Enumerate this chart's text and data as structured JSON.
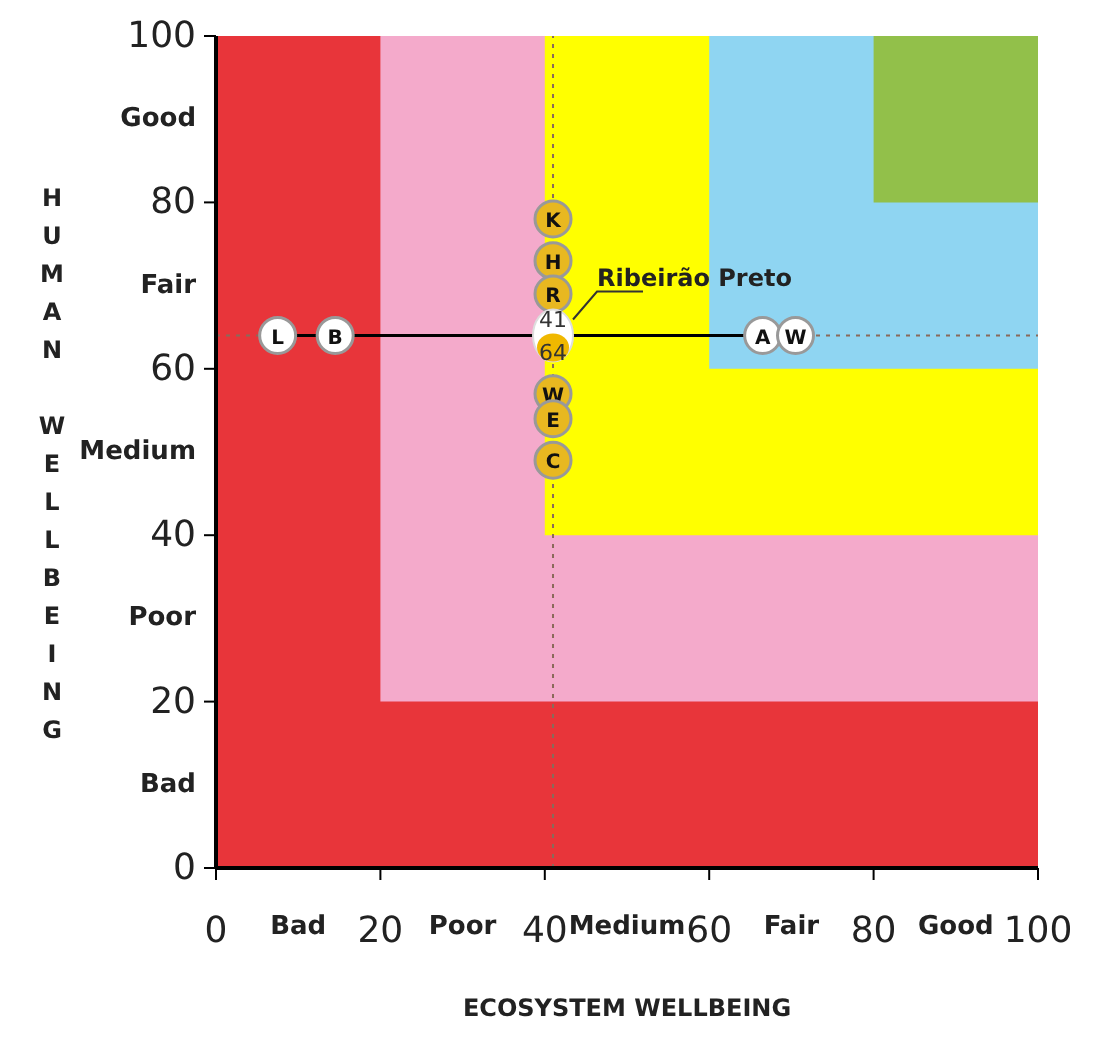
{
  "chart_data": {
    "type": "scatter",
    "xlabel": "ECOSYSTEM WELLBEING",
    "ylabel": "HUMAN WELLBEING",
    "xlim": [
      0,
      100
    ],
    "ylim": [
      0,
      100
    ],
    "xticks": [
      0,
      {
        "value": 10,
        "label": "Bad"
      },
      20,
      {
        "value": 30,
        "label": "Poor"
      },
      40,
      {
        "value": 50,
        "label": "Medium"
      },
      60,
      {
        "value": 70,
        "label": "Fair"
      },
      80,
      {
        "value": 90,
        "label": "Good"
      },
      100
    ],
    "yticks": [
      0,
      {
        "value": 10,
        "label": "Bad"
      },
      20,
      {
        "value": 30,
        "label": "Poor"
      },
      40,
      {
        "value": 50,
        "label": "Medium"
      },
      60,
      {
        "value": 70,
        "label": "Fair"
      },
      80,
      {
        "value": 90,
        "label": "Good"
      },
      100
    ],
    "bands": [
      {
        "axis": "x",
        "from": 0,
        "to": 100,
        "color": "#e8353a"
      },
      {
        "axis": "x",
        "from": 20,
        "to": 100,
        "color": "#f4aacb"
      },
      {
        "axis": "x",
        "from": 40,
        "to": 100,
        "color": "#ffff00"
      },
      {
        "axis": "x",
        "from": 60,
        "to": 100,
        "color": "#8fd5f2"
      },
      {
        "axis": "x",
        "from": 80,
        "to": 100,
        "color": "#92c04a"
      }
    ],
    "ref_lines": [
      {
        "axis": "x",
        "value": 41,
        "color": "#8a6a5a",
        "line_style": "dotted"
      },
      {
        "axis": "y",
        "value": 64,
        "color": "#8a6a5a",
        "line_style": "dotted"
      }
    ],
    "series": [
      {
        "type": "line",
        "color": "#000000",
        "marker": "none",
        "x": [
          7.5,
          70.5
        ],
        "values": [
          64,
          64
        ]
      },
      {
        "color": "#ffffff",
        "x": [
          7.5,
          14.5,
          66.5,
          70.5
        ],
        "values": [
          64,
          64,
          64,
          64
        ],
        "value_labels": [
          "L",
          "B",
          "A",
          "W"
        ]
      },
      {
        "color": "#e8b820",
        "x": [
          41,
          41,
          41,
          41,
          41,
          41
        ],
        "values": [
          78,
          73,
          69,
          57,
          54,
          49
        ],
        "value_labels": [
          "K",
          "H",
          "R",
          "W",
          "E",
          "C"
        ]
      },
      {
        "name": "Ribeirão Preto",
        "color": "#ffffff",
        "x": [
          41
        ],
        "values": [
          64
        ]
      }
    ],
    "annotations": [
      {
        "text": "41",
        "x": 41,
        "y": 66
      },
      {
        "text": "64",
        "x": 41,
        "y": 62
      }
    ],
    "marker": "circle"
  }
}
